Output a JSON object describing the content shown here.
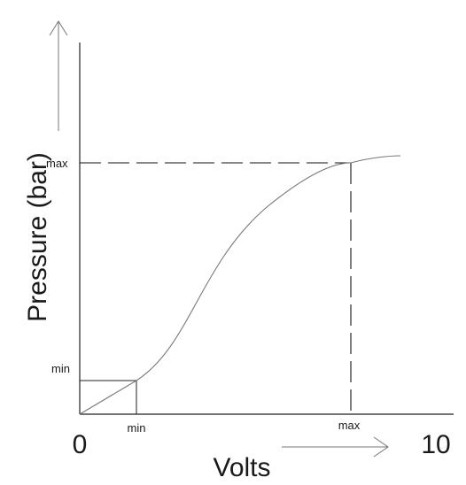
{
  "diagram": {
    "y_axis_title": "Pressure (bar)",
    "x_axis_title": "Volts",
    "x_origin_label": "0",
    "x_end_label": "10",
    "y_max_label": "max",
    "y_min_label": "min",
    "x_min_label": "min",
    "x_max_label": "max"
  }
}
